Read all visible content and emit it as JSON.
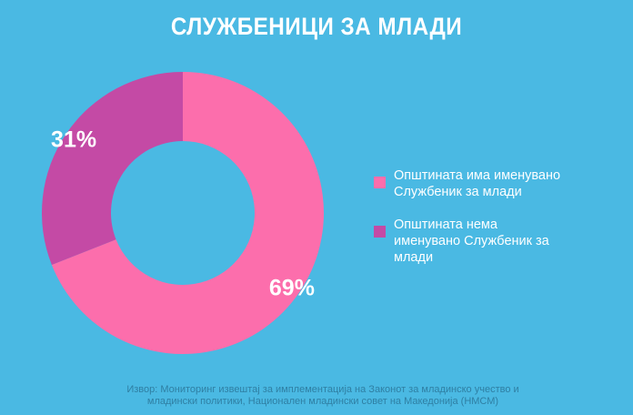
{
  "colors": {
    "background": "#4ab9e3",
    "slice_has": "#fc6eac",
    "slice_not": "#c44aa5"
  },
  "chart_data": {
    "type": "pie",
    "donut": true,
    "title": "СЛУЖБЕНИЦИ ЗА МЛАДИ",
    "categories": [
      "Општината има именувано Службеник за млади",
      "Општината нема именувано Службеник за млади"
    ],
    "values": [
      69,
      31
    ],
    "data_labels": [
      "69%",
      "31%"
    ],
    "colors": [
      "#fc6eac",
      "#c44aa5"
    ],
    "legend_placement": "right"
  },
  "source_text": "Извор: Мониторинг извештај за имплементација на Законот за младинско учество и младински политики, Национален младински совет на Македонија (НМСМ)"
}
